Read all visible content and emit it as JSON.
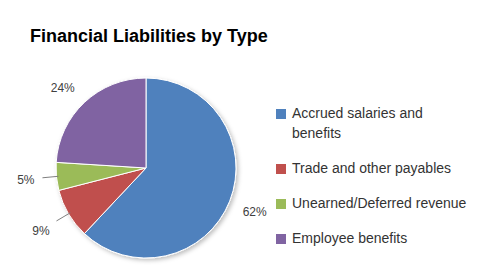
{
  "chart_data": {
    "type": "pie",
    "title": "Financial Liabilities by Type",
    "categories": [
      "Accrued salaries and benefits",
      "Trade and other payables",
      "Unearned/Deferred revenue",
      "Employee benefits"
    ],
    "values": [
      62,
      9,
      5,
      24
    ],
    "value_labels": [
      "62%",
      "9%",
      "5%",
      "24%"
    ],
    "colors": [
      "#4f81bd",
      "#c0504d",
      "#9bbb59",
      "#8064a2"
    ],
    "data_labels": true,
    "legend": "right"
  }
}
